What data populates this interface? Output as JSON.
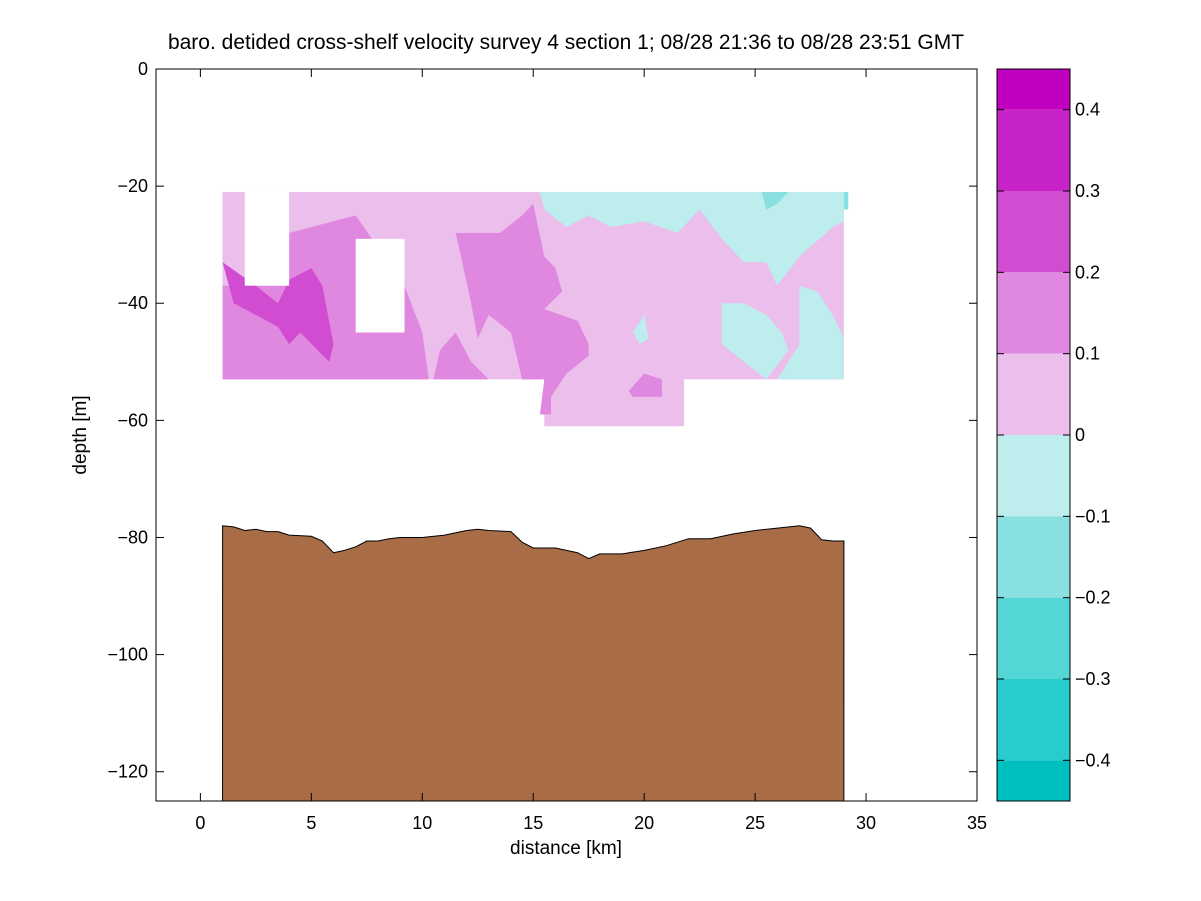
{
  "chart_data": {
    "type": "heatmap",
    "title": "baro. detided cross-shelf velocity survey 4 section 1; 08/28 21:36 to 08/28 23:51 GMT",
    "xlabel": "distance [km]",
    "ylabel": "depth [m]",
    "xlim": [
      -2,
      35
    ],
    "ylim": [
      -125,
      0
    ],
    "xticks": [
      0,
      5,
      10,
      15,
      20,
      25,
      30,
      35
    ],
    "yticks": [
      0,
      -20,
      -40,
      -60,
      -80,
      -100,
      -120
    ],
    "grid": false,
    "colorbar": {
      "range": [
        -0.45,
        0.45
      ],
      "ticks": [
        0.4,
        0.3,
        0.2,
        0.1,
        0,
        -0.1,
        -0.2,
        -0.3,
        -0.4
      ],
      "levels": [
        {
          "min": 0.4,
          "max": 0.45,
          "color": "#c000c0"
        },
        {
          "min": 0.3,
          "max": 0.4,
          "color": "#c823c8"
        },
        {
          "min": 0.2,
          "max": 0.3,
          "color": "#d14cd1"
        },
        {
          "min": 0.1,
          "max": 0.2,
          "color": "#e088e0"
        },
        {
          "min": 0.0,
          "max": 0.1,
          "color": "#ecbeec"
        },
        {
          "min": -0.1,
          "max": 0.0,
          "color": "#bdeded"
        },
        {
          "min": -0.2,
          "max": -0.1,
          "color": "#88e0e0"
        },
        {
          "min": -0.3,
          "max": -0.2,
          "color": "#55d6d6"
        },
        {
          "min": -0.4,
          "max": -0.3,
          "color": "#28cccc"
        },
        {
          "min": -0.45,
          "max": -0.4,
          "color": "#00bfbf"
        }
      ]
    },
    "seafloor_color": "#a86c46",
    "bathymetry": {
      "distance_km": [
        1.0,
        1.5,
        2.0,
        2.5,
        3.0,
        3.5,
        4.0,
        5.0,
        5.5,
        6.0,
        6.5,
        7.0,
        7.5,
        8.0,
        8.5,
        9.0,
        10.0,
        11.0,
        12.0,
        12.5,
        13.0,
        14.0,
        14.5,
        15.0,
        16.0,
        17.0,
        17.5,
        18.0,
        19.0,
        20.0,
        21.0,
        22.0,
        23.0,
        24.0,
        25.0,
        26.0,
        27.0,
        27.5,
        28.0,
        28.5,
        29.0
      ],
      "depth_m": [
        -78.0,
        -78.2,
        -78.8,
        -78.6,
        -79.0,
        -79.0,
        -79.6,
        -79.8,
        -80.6,
        -82.6,
        -82.2,
        -81.6,
        -80.6,
        -80.6,
        -80.2,
        -80.0,
        -80.0,
        -79.6,
        -78.8,
        -78.6,
        -78.8,
        -79.0,
        -80.8,
        -81.8,
        -81.8,
        -82.6,
        -83.6,
        -82.8,
        -82.8,
        -82.2,
        -81.4,
        -80.2,
        -80.2,
        -79.4,
        -78.8,
        -78.4,
        -78.0,
        -78.4,
        -80.4,
        -80.6,
        -80.6
      ]
    },
    "velocity_section": {
      "background_level": 0.05,
      "data_extent": {
        "x_km": [
          1.0,
          29.0
        ],
        "depth_m": [
          -21,
          -53
        ],
        "deep_extension": {
          "x_km": [
            15.5,
            21.8
          ],
          "depth_m": [
            -53,
            -61
          ]
        }
      },
      "no_data_gaps": [
        {
          "x_km": [
            2.0,
            4.0
          ],
          "depth_m": [
            -21,
            -37
          ]
        },
        {
          "x_km": [
            7.0,
            9.2
          ],
          "depth_m": [
            -29,
            -45
          ]
        }
      ],
      "regions": [
        {
          "level": 0.15,
          "polygon": [
            [
              1.0,
              -37
            ],
            [
              2.0,
              -37
            ],
            [
              4.0,
              -37
            ],
            [
              4.0,
              -28
            ],
            [
              6.0,
              -26
            ],
            [
              7.0,
              -25
            ],
            [
              9.2,
              -37
            ],
            [
              10.0,
              -45
            ],
            [
              10.3,
              -53
            ],
            [
              1.0,
              -53
            ]
          ]
        },
        {
          "level": 0.15,
          "polygon": [
            [
              10.5,
              -53
            ],
            [
              10.8,
              -48
            ],
            [
              11.5,
              -45
            ],
            [
              12.2,
              -50
            ],
            [
              13.0,
              -53
            ]
          ]
        },
        {
          "level": 0.15,
          "polygon": [
            [
              11.5,
              -28
            ],
            [
              13.5,
              -28
            ],
            [
              14.5,
              -25
            ],
            [
              15.0,
              -23
            ],
            [
              15.5,
              -32
            ],
            [
              16.0,
              -34
            ],
            [
              16.3,
              -38
            ],
            [
              15.5,
              -41
            ],
            [
              17.0,
              -43
            ],
            [
              17.5,
              -47
            ],
            [
              17.5,
              -49
            ],
            [
              16.5,
              -52
            ],
            [
              15.8,
              -56
            ],
            [
              15.8,
              -59
            ],
            [
              15.3,
              -59
            ],
            [
              15.5,
              -53
            ],
            [
              14.5,
              -53
            ],
            [
              14.0,
              -45
            ],
            [
              13.0,
              -42
            ],
            [
              12.5,
              -46
            ],
            [
              12.2,
              -40
            ],
            [
              11.8,
              -33
            ]
          ]
        },
        {
          "level": 0.25,
          "polygon": [
            [
              1.0,
              -33
            ],
            [
              2.5,
              -37
            ],
            [
              3.5,
              -40
            ],
            [
              4.0,
              -36
            ],
            [
              5.0,
              -34
            ],
            [
              5.5,
              -37
            ],
            [
              6.0,
              -47
            ],
            [
              5.8,
              -50
            ],
            [
              4.5,
              -45
            ],
            [
              4.0,
              -47
            ],
            [
              3.5,
              -44
            ],
            [
              1.5,
              -40
            ]
          ]
        },
        {
          "level": 0.15,
          "polygon": [
            [
              19.3,
              -55
            ],
            [
              20.0,
              -52
            ],
            [
              20.8,
              -53
            ],
            [
              20.8,
              -56
            ],
            [
              19.5,
              -56
            ]
          ]
        },
        {
          "level": -0.05,
          "polygon": [
            [
              15.3,
              -21
            ],
            [
              29.0,
              -21
            ],
            [
              29.0,
              -26
            ],
            [
              28.5,
              -27
            ],
            [
              27.0,
              -32
            ],
            [
              26.0,
              -37
            ],
            [
              25.5,
              -33
            ],
            [
              24.5,
              -33
            ],
            [
              23.5,
              -29
            ],
            [
              22.5,
              -24
            ],
            [
              21.5,
              -28
            ],
            [
              20.0,
              -26
            ],
            [
              18.5,
              -27
            ],
            [
              17.5,
              -25
            ],
            [
              16.5,
              -27
            ],
            [
              15.5,
              -24
            ]
          ]
        },
        {
          "level": -0.05,
          "polygon": [
            [
              27.0,
              -37
            ],
            [
              27.8,
              -38
            ],
            [
              28.5,
              -42
            ],
            [
              29.0,
              -46
            ],
            [
              29.0,
              -53
            ],
            [
              26.0,
              -53
            ],
            [
              26.5,
              -50
            ],
            [
              27.0,
              -47
            ],
            [
              27.0,
              -42
            ]
          ]
        },
        {
          "level": -0.05,
          "polygon": [
            [
              23.5,
              -40
            ],
            [
              24.5,
              -40
            ],
            [
              25.5,
              -42
            ],
            [
              26.2,
              -45
            ],
            [
              26.5,
              -48
            ],
            [
              25.5,
              -53
            ],
            [
              24.5,
              -50
            ],
            [
              23.5,
              -47
            ]
          ]
        },
        {
          "level": -0.05,
          "polygon": [
            [
              19.5,
              -45
            ],
            [
              20.0,
              -42
            ],
            [
              20.2,
              -46
            ],
            [
              19.8,
              -47
            ]
          ]
        },
        {
          "level": -0.15,
          "polygon": [
            [
              25.3,
              -21
            ],
            [
              26.5,
              -21
            ],
            [
              26.0,
              -23
            ],
            [
              25.5,
              -24
            ]
          ]
        },
        {
          "level": -0.15,
          "polygon": [
            [
              29.0,
              -21
            ],
            [
              29.2,
              -21
            ],
            [
              29.2,
              -24
            ],
            [
              29.0,
              -24
            ]
          ]
        }
      ]
    }
  }
}
